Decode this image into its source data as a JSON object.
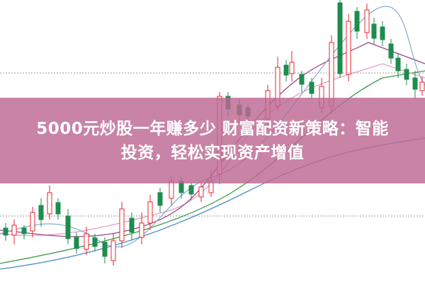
{
  "banner": {
    "lines": [
      "5000元炒股一年赚多少 财富配资新策略：智能",
      "投资，轻松实现资产增值"
    ]
  }
}
